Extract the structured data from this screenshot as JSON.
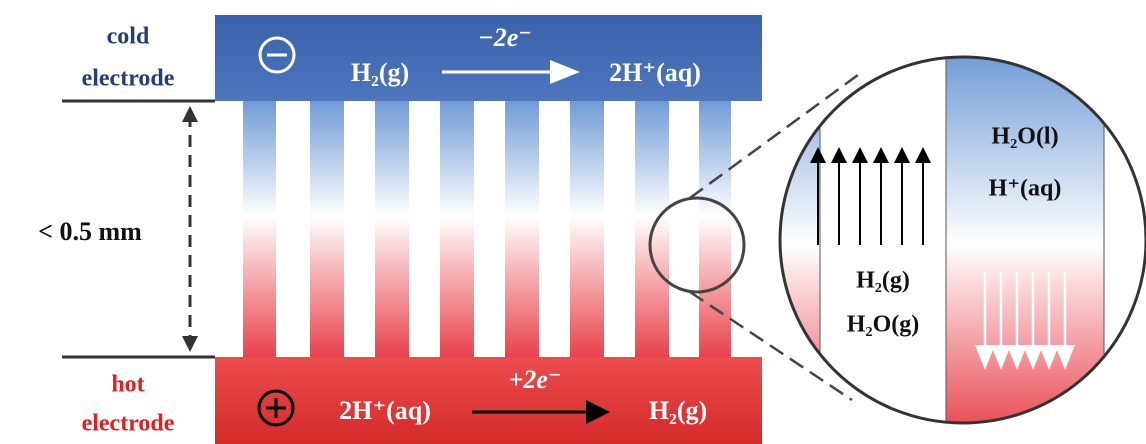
{
  "labels": {
    "cold_title": "cold",
    "cold_sub": "electrode",
    "hot_title": "hot",
    "hot_sub": "electrode",
    "gap": "< 0.5 mm"
  },
  "top_reaction": {
    "reactant": "H₂(g)",
    "electrons": "−2e⁻",
    "product": "2H⁺(aq)"
  },
  "bottom_reaction": {
    "reactant": "2H⁺(aq)",
    "electrons": "+2e⁻",
    "product": "H₂(g)"
  },
  "zoom": {
    "liquid_1": "H₂O(l)",
    "liquid_2": "H⁺(aq)",
    "gas_1": "H₂(g)",
    "gas_2": "H₂O(g)"
  }
}
